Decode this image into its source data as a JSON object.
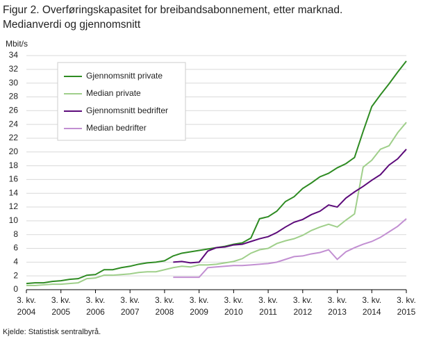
{
  "chart_data": {
    "type": "line",
    "title": "Figur 2. Overføringskapasitet for breibandsabonnement, etter marknad.",
    "subtitle": "Medianverdi og gjennomsnitt",
    "y_label": "Mbit/s",
    "source": "Kjelde: Statistisk sentralbyrå.",
    "categories": [
      "3. kv.\n2004",
      null,
      null,
      null,
      "3. kv.\n2005",
      null,
      null,
      null,
      "3. kv.\n2006",
      null,
      null,
      null,
      "3. kv.\n2007",
      null,
      null,
      null,
      "3. kv.\n2008",
      null,
      null,
      null,
      "3. kv.\n2009",
      null,
      null,
      null,
      "3. kv.\n2010",
      null,
      null,
      null,
      "3. kv.\n2011",
      null,
      null,
      null,
      "3. kv.\n2012",
      null,
      null,
      null,
      "3. kv.\n2013",
      null,
      null,
      null,
      "3. kv.\n2014",
      null,
      null,
      null,
      "3. kv.\n2015"
    ],
    "series": [
      {
        "name": "Gjennomsnitt private",
        "color": "#2e8b22",
        "values": [
          0.9,
          1.0,
          1.0,
          1.2,
          1.3,
          1.5,
          1.6,
          2.1,
          2.2,
          2.9,
          2.9,
          3.2,
          3.4,
          3.7,
          3.9,
          4.0,
          4.2,
          4.9,
          5.3,
          5.5,
          5.7,
          5.9,
          6.1,
          6.3,
          6.6,
          6.8,
          7.5,
          10.3,
          10.6,
          11.4,
          12.8,
          13.5,
          14.7,
          15.5,
          16.4,
          16.9,
          17.7,
          18.3,
          19.2,
          23.0,
          26.6,
          28.3,
          29.9,
          31.6,
          33.2
        ]
      },
      {
        "name": "Median private",
        "color": "#9fcf8a",
        "values": [
          0.6,
          0.6,
          0.7,
          0.8,
          0.8,
          0.9,
          1.0,
          1.6,
          1.7,
          2.1,
          2.1,
          2.2,
          2.3,
          2.5,
          2.6,
          2.6,
          2.9,
          3.2,
          3.4,
          3.3,
          3.6,
          3.6,
          3.7,
          3.9,
          4.1,
          4.5,
          5.3,
          5.8,
          6.0,
          6.7,
          7.1,
          7.4,
          7.9,
          8.6,
          9.1,
          9.5,
          9.1,
          10.1,
          11.0,
          17.8,
          18.8,
          20.4,
          20.9,
          22.8,
          24.3
        ]
      },
      {
        "name": "Gjennomsnitt bedrifter",
        "color": "#5c0a7a",
        "values": [
          null,
          null,
          null,
          null,
          null,
          null,
          null,
          null,
          null,
          null,
          null,
          null,
          null,
          null,
          null,
          null,
          null,
          4.0,
          4.1,
          3.9,
          4.0,
          5.6,
          6.1,
          6.2,
          6.5,
          6.6,
          7.0,
          7.4,
          7.7,
          8.3,
          9.1,
          9.8,
          10.2,
          10.9,
          11.4,
          12.3,
          12.0,
          13.3,
          14.2,
          15.0,
          15.9,
          16.7,
          18.1,
          19.0,
          20.4
        ]
      },
      {
        "name": "Median bedrifter",
        "color": "#c28fd2",
        "values": [
          null,
          null,
          null,
          null,
          null,
          null,
          null,
          null,
          null,
          null,
          null,
          null,
          null,
          null,
          null,
          null,
          null,
          1.8,
          1.8,
          1.8,
          1.8,
          3.2,
          3.3,
          3.4,
          3.5,
          3.5,
          3.6,
          3.7,
          3.8,
          4.0,
          4.4,
          4.8,
          4.9,
          5.2,
          5.4,
          5.8,
          4.4,
          5.5,
          6.1,
          6.6,
          7.0,
          7.6,
          8.4,
          9.2,
          10.3
        ]
      }
    ],
    "ylim": [
      0,
      34
    ],
    "yticks": [
      0,
      2,
      4,
      6,
      8,
      10,
      12,
      14,
      16,
      18,
      20,
      22,
      24,
      26,
      28,
      30,
      32,
      34
    ],
    "grid": true
  }
}
